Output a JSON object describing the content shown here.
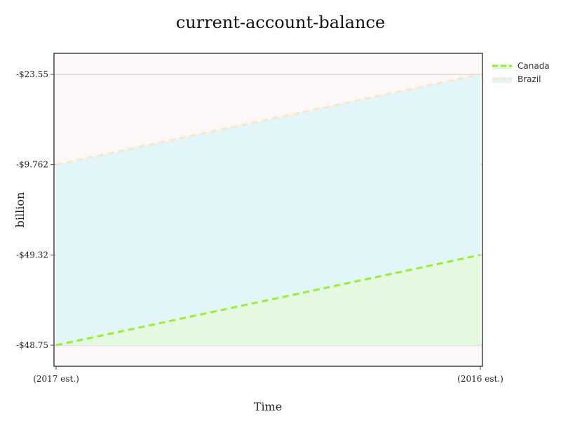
{
  "chart_data": {
    "type": "area",
    "title": "current-account-balance",
    "xlabel": "Time",
    "ylabel": "billion",
    "categories": [
      "(2017 est.)",
      "(2016 est.)"
    ],
    "y_tick_labels": [
      "-$23.55",
      "-$9.762",
      "-$49.32",
      "-$48.75"
    ],
    "series": [
      {
        "name": "Canada",
        "values": [
          "-$48.75",
          "-$49.32"
        ],
        "line_color": "#99ee33",
        "line_style": "dashed",
        "fill_color": "#e4f9e0"
      },
      {
        "name": "Brazil",
        "values": [
          "-$9.762",
          "-$23.55"
        ],
        "line_color": "#fde6c8",
        "line_style": "dashed",
        "fill_color": "#e2f6f9"
      }
    ],
    "grid": true,
    "legend": "top-right",
    "plot_background": "#fdf8f8"
  }
}
